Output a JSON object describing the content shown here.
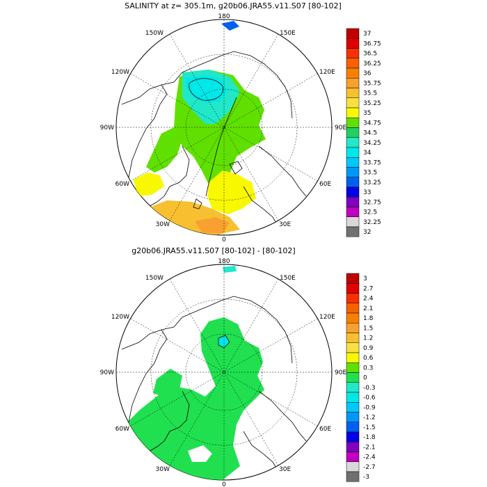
{
  "panels": [
    {
      "title": "SALINITY at z= 305.1m, g20b06.JRA55.v11.S07 [80-102]",
      "lon_labels": {
        "top": "180",
        "bottom": "0",
        "left": "90W",
        "right": "90E",
        "upper_left_1": "150W",
        "upper_left_2": "120W",
        "upper_right_1": "150E",
        "upper_right_2": "120E",
        "lower_left_1": "60W",
        "lower_left_2": "30W",
        "lower_right_1": "60E",
        "lower_right_2": "30E"
      },
      "colorbar": {
        "labels": [
          "37",
          "36.75",
          "36.5",
          "36.25",
          "36",
          "35.75",
          "35.5",
          "35.25",
          "35",
          "34.75",
          "34.5",
          "34.25",
          "34",
          "33.75",
          "33.5",
          "33.25",
          "33",
          "32.75",
          "32.5",
          "32.25",
          "32"
        ],
        "colors": [
          "#c00000",
          "#e00000",
          "#f83000",
          "#f86000",
          "#f88000",
          "#f8a030",
          "#f8c030",
          "#f8e040",
          "#f8f800",
          "#60e000",
          "#20d060",
          "#20e8c8",
          "#00e8e8",
          "#00c8f8",
          "#0098f8",
          "#0060f0",
          "#0000e8",
          "#8000c0",
          "#c000c0",
          "#d8d8d8",
          "#707070"
        ]
      }
    },
    {
      "title": "g20b06.JRA55.v11.S07 [80-102] -  [80-102]",
      "lon_labels": {
        "top": "180",
        "bottom": "0",
        "left": "90W",
        "right": "90E",
        "upper_left_1": "150W",
        "upper_left_2": "120W",
        "upper_right_1": "150E",
        "upper_right_2": "120E",
        "lower_left_1": "60W",
        "lower_left_2": "30W",
        "lower_right_1": "60E",
        "lower_right_2": "30E"
      },
      "colorbar": {
        "labels": [
          "3",
          "2.7",
          "2.4",
          "2.1",
          "1.8",
          "1.5",
          "1.2",
          "0.9",
          "0.6",
          "0.3",
          "0",
          "-0.3",
          "-0.6",
          "-0.9",
          "-1.2",
          "-1.5",
          "-1.8",
          "-2.1",
          "-2.4",
          "-2.7",
          "-3"
        ],
        "colors": [
          "#c00000",
          "#e00000",
          "#f83000",
          "#f86000",
          "#f88000",
          "#f8a030",
          "#f8c030",
          "#f8e040",
          "#f8f800",
          "#60e000",
          "#20e050",
          "#20e8c8",
          "#00e8e8",
          "#00c8f8",
          "#0098f8",
          "#0060f0",
          "#0000e8",
          "#8000c0",
          "#c000c0",
          "#d8d8d8",
          "#707070"
        ]
      }
    }
  ]
}
